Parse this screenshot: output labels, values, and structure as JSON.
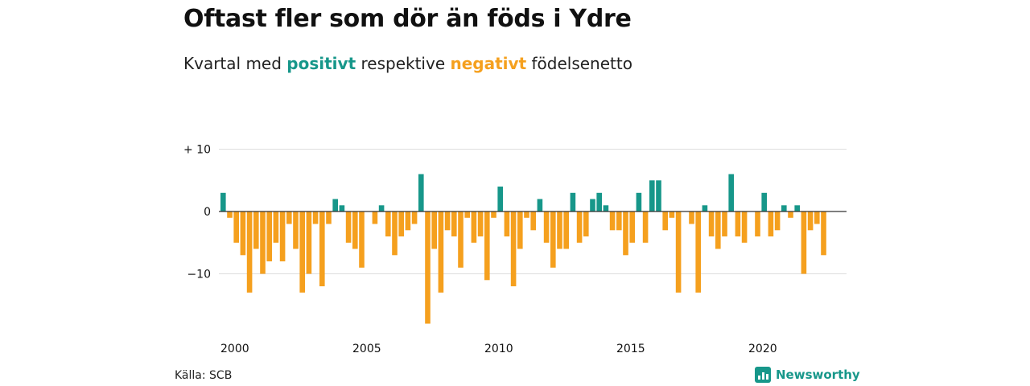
{
  "title": "Oftast fler som dör än föds i Ydre",
  "subtitle": {
    "prefix": "Kvartal med",
    "positive": "positivt",
    "middle": "respektive",
    "negative": "negativt",
    "suffix": "födelsenetto"
  },
  "source": "Källa: SCB",
  "brand": "Newsworthy",
  "colors": {
    "positive": "#17978a",
    "negative": "#f5a01e",
    "grid": "#dddddd",
    "zero_line": "#333333",
    "text": "#111111"
  },
  "chart_data": {
    "type": "bar",
    "x_start": 2000,
    "x_step": 0.25,
    "values": [
      3,
      -1,
      -5,
      -7,
      -13,
      -6,
      -10,
      -8,
      -5,
      -8,
      -2,
      -6,
      -13,
      -10,
      -2,
      -12,
      -2,
      2,
      1,
      -5,
      -6,
      -9,
      0,
      -2,
      1,
      -4,
      -7,
      -4,
      -3,
      -2,
      6,
      -18,
      -6,
      -13,
      -3,
      -4,
      -9,
      -1,
      -5,
      -4,
      -11,
      -1,
      4,
      -4,
      -12,
      -6,
      -1,
      -3,
      2,
      -5,
      -9,
      -6,
      -6,
      3,
      -5,
      -4,
      2,
      3,
      1,
      -3,
      -3,
      -7,
      -5,
      3,
      -5,
      5,
      5,
      -3,
      -1,
      -13,
      0,
      -2,
      -13,
      1,
      -4,
      -6,
      -4,
      6,
      -4,
      -5,
      0,
      -4,
      3,
      -4,
      -3,
      1,
      -1,
      1,
      -10,
      -3,
      -2,
      -7
    ],
    "xticks": [
      2000,
      2005,
      2010,
      2015,
      2020
    ],
    "yticks": [
      10,
      0,
      -10
    ],
    "ytick_labels": [
      "+ 10",
      "0",
      "−10"
    ],
    "ylim": [
      -18,
      10
    ],
    "grid": true,
    "xlabel": "",
    "ylabel": ""
  }
}
